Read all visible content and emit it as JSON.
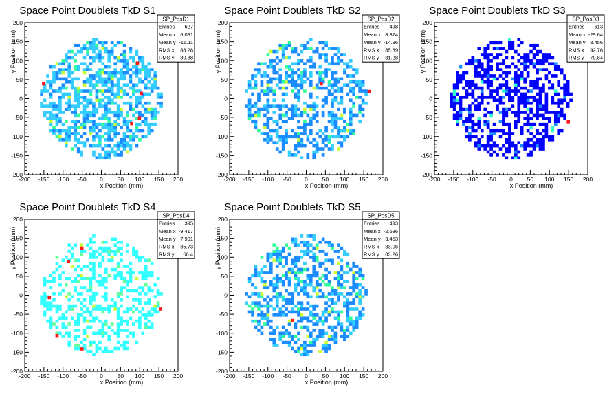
{
  "colors": {
    "frame": "#000000",
    "heat_low": "#33ccff",
    "heat_mid1": "#1a8cff",
    "heat_mid2": "#33ff99",
    "heat_mid3": "#ccff33",
    "heat_high": "#ff1a1a",
    "dark_blue": "#0000ff"
  },
  "axes": {
    "xlim": [
      -200,
      200
    ],
    "ylim": [
      -200,
      200
    ],
    "ticks": [
      -200,
      -150,
      -100,
      -50,
      0,
      50,
      100,
      150,
      200
    ],
    "xlabel": "x Position (mm)",
    "ylabel": "y Position (mm)"
  },
  "chart_data": [
    {
      "type": "heatmap",
      "title": "Space Point Doublets TkD S1",
      "stats": {
        "name": "SP_PosD1",
        "rows": [
          {
            "label": "Entries",
            "value": "627"
          },
          {
            "label": "Mean x",
            "value": "6.091"
          },
          {
            "label": "Mean y",
            "value": "-16.11"
          },
          {
            "label": "RMS x",
            "value": "88.28"
          },
          {
            "label": "RMS y",
            "value": "80.88"
          }
        ]
      },
      "palette": [
        "#33ccff",
        "#1a8cff",
        "#33ff99",
        "#ccff33",
        "#ff1a1a"
      ],
      "density": 0.55,
      "seed": 11,
      "hot": [
        [
          -155,
          35
        ],
        [
          90,
          90
        ],
        [
          100,
          10
        ],
        [
          75,
          -70
        ],
        [
          95,
          -55
        ]
      ]
    },
    {
      "type": "heatmap",
      "title": "Space Point Doublets TkD S2",
      "stats": {
        "name": "SP_PosD2",
        "rows": [
          {
            "label": "Entries",
            "value": "498"
          },
          {
            "label": "Mean x",
            "value": "8.374"
          },
          {
            "label": "Mean y",
            "value": "-14.96"
          },
          {
            "label": "RMS x",
            "value": "85.89"
          },
          {
            "label": "RMS y",
            "value": "81.28"
          }
        ]
      },
      "palette": [
        "#1a8cff",
        "#33ccff",
        "#33ff99",
        "#ccff33",
        "#ff1a1a"
      ],
      "density": 0.45,
      "seed": 23,
      "hot": [
        [
          35,
          35
        ],
        [
          160,
          15
        ]
      ]
    },
    {
      "type": "heatmap",
      "title": "Space Point Doublets TkD S3",
      "stats": {
        "name": "SP_PosD3",
        "rows": [
          {
            "label": "Entries",
            "value": "613"
          },
          {
            "label": "Mean x",
            "value": "-29.64"
          },
          {
            "label": "Mean y",
            "value": "8.456"
          },
          {
            "label": "RMS x",
            "value": "92.76"
          },
          {
            "label": "RMS y",
            "value": "79.84"
          }
        ]
      },
      "palette": [
        "#0000ff",
        "#0000ff",
        "#1a8cff",
        "#33ffcc",
        "#ff1a1a"
      ],
      "density": 0.5,
      "seed": 37,
      "hot": [
        [
          145,
          -65
        ]
      ]
    },
    {
      "type": "heatmap",
      "title": "Space Point Doublets TkD S4",
      "stats": {
        "name": "SP_PosD4",
        "rows": [
          {
            "label": "Entries",
            "value": "395"
          },
          {
            "label": "Mean x",
            "value": "-9.417"
          },
          {
            "label": "Mean y",
            "value": "-7.901"
          },
          {
            "label": "RMS x",
            "value": "85.73"
          },
          {
            "label": "RMS y",
            "value": "66.4"
          }
        ]
      },
      "palette": [
        "#33ffff",
        "#33ffff",
        "#66ff99",
        "#ccff33",
        "#ff1a1a"
      ],
      "density": 0.4,
      "seed": 49,
      "hot": [
        [
          -55,
          120
        ],
        [
          -90,
          85
        ],
        [
          -140,
          -10
        ],
        [
          -120,
          -110
        ],
        [
          -55,
          -145
        ],
        [
          150,
          -40
        ]
      ]
    },
    {
      "type": "heatmap",
      "title": "Space Point Doublets TkD S5",
      "stats": {
        "name": "SP_PosD5",
        "rows": [
          {
            "label": "Entries",
            "value": "493"
          },
          {
            "label": "Mean x",
            "value": "-2.686"
          },
          {
            "label": "Mean y",
            "value": "3.453"
          },
          {
            "label": "RMS x",
            "value": "83.06"
          },
          {
            "label": "RMS y",
            "value": "83.26"
          }
        ]
      },
      "palette": [
        "#1a8cff",
        "#33ccff",
        "#33ff99",
        "#ccff33",
        "#ff1a1a"
      ],
      "density": 0.45,
      "seed": 61,
      "hot": [
        [
          -40,
          -70
        ]
      ]
    }
  ]
}
